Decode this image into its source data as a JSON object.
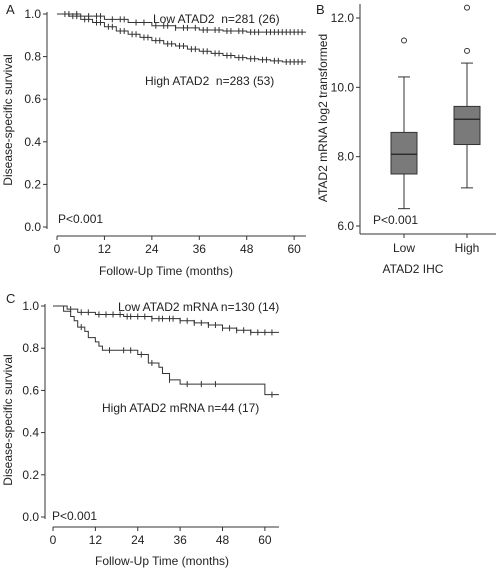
{
  "chart_data": [
    {
      "panel_label": "A",
      "type": "line",
      "chart_subtype": "kaplan-meier",
      "xlabel": "Follow-Up Time (months)",
      "ylabel": "Disease-specific survival",
      "xlim": [
        0,
        63
      ],
      "ylim": [
        0,
        1.0
      ],
      "x_ticks": [
        "0",
        "12",
        "24",
        "36",
        "48",
        "60"
      ],
      "y_ticks": [
        "0.0",
        "0.2",
        "0.4",
        "0.6",
        "0.8",
        "1.0"
      ],
      "annotation": "P<0.001",
      "series": [
        {
          "name": "Low ATAD2  n=281 (26)",
          "steps": [
            [
              0,
              1.0
            ],
            [
              6,
              0.99
            ],
            [
              12,
              0.975
            ],
            [
              18,
              0.96
            ],
            [
              24,
              0.945
            ],
            [
              30,
              0.935
            ],
            [
              36,
              0.925
            ],
            [
              42,
              0.92
            ],
            [
              48,
              0.915
            ],
            [
              54,
              0.915
            ],
            [
              63,
              0.915
            ]
          ],
          "censored_x": [
            3,
            5,
            8,
            10,
            11,
            14,
            16,
            17,
            20,
            22,
            25,
            27,
            28,
            30,
            32,
            33,
            35,
            37,
            38,
            40,
            41,
            43,
            44,
            46,
            47,
            49,
            50,
            51,
            53,
            54,
            55,
            56,
            57,
            58,
            59,
            60,
            61,
            62
          ]
        },
        {
          "name": "High ATAD2  n=283 (53)",
          "steps": [
            [
              0,
              1.0
            ],
            [
              3,
              0.99
            ],
            [
              6,
              0.975
            ],
            [
              9,
              0.96
            ],
            [
              12,
              0.94
            ],
            [
              15,
              0.92
            ],
            [
              18,
              0.905
            ],
            [
              21,
              0.89
            ],
            [
              24,
              0.875
            ],
            [
              27,
              0.86
            ],
            [
              30,
              0.85
            ],
            [
              33,
              0.835
            ],
            [
              36,
              0.825
            ],
            [
              39,
              0.815
            ],
            [
              42,
              0.805
            ],
            [
              45,
              0.795
            ],
            [
              48,
              0.79
            ],
            [
              51,
              0.785
            ],
            [
              54,
              0.78
            ],
            [
              57,
              0.775
            ],
            [
              63,
              0.775
            ]
          ],
          "censored_x": [
            2,
            4,
            5,
            7,
            8,
            10,
            11,
            13,
            14,
            16,
            17,
            19,
            20,
            22,
            23,
            25,
            26,
            28,
            29,
            31,
            32,
            34,
            35,
            37,
            38,
            40,
            41,
            43,
            44,
            46,
            47,
            49,
            50,
            52,
            53,
            55,
            56,
            58,
            59,
            60,
            61,
            62
          ]
        }
      ]
    },
    {
      "panel_label": "B",
      "type": "box",
      "xlabel": "ATAD2 IHC",
      "ylabel": "ATAD2 mRNA log2 transformed",
      "ylim": [
        6.0,
        12.5
      ],
      "y_ticks": [
        "6.0",
        "8.0",
        "10.0",
        "12.0"
      ],
      "categories": [
        "Low",
        "High"
      ],
      "annotation": "P<0.001",
      "boxes": [
        {
          "category": "Low",
          "whisker_low": 6.5,
          "q1": 7.5,
          "median": 8.07,
          "q3": 8.7,
          "whisker_high": 10.3,
          "outliers": [
            11.35
          ]
        },
        {
          "category": "High",
          "whisker_low": 7.1,
          "q1": 8.35,
          "median": 9.08,
          "q3": 9.45,
          "whisker_high": 10.7,
          "outliers": [
            11.05,
            12.3
          ]
        }
      ]
    },
    {
      "panel_label": "C",
      "type": "line",
      "chart_subtype": "kaplan-meier",
      "xlabel": "Follow-Up Time (months)",
      "ylabel": "Disease-specific survival",
      "xlim": [
        0,
        64
      ],
      "ylim": [
        0,
        1.0
      ],
      "x_ticks": [
        "0",
        "12",
        "24",
        "36",
        "48",
        "60"
      ],
      "y_ticks": [
        "0.0",
        "0.2",
        "0.4",
        "0.6",
        "0.8",
        "1.0"
      ],
      "annotation": "P<0.001",
      "series": [
        {
          "name": "Low ATAD2 mRNA n=130 (14)",
          "steps": [
            [
              0,
              1.0
            ],
            [
              4,
              0.985
            ],
            [
              7,
              0.97
            ],
            [
              12,
              0.96
            ],
            [
              20,
              0.95
            ],
            [
              28,
              0.94
            ],
            [
              36,
              0.93
            ],
            [
              40,
              0.92
            ],
            [
              44,
              0.91
            ],
            [
              48,
              0.895
            ],
            [
              52,
              0.885
            ],
            [
              56,
              0.875
            ],
            [
              64,
              0.875
            ]
          ],
          "censored_x": [
            5,
            8,
            10,
            13,
            15,
            17,
            19,
            21,
            22,
            24,
            26,
            28,
            30,
            31,
            33,
            34,
            36,
            38,
            40,
            42,
            44,
            46,
            48,
            50,
            52,
            54,
            56,
            58,
            60,
            62
          ]
        },
        {
          "name": "High ATAD2 mRNA n=44 (17)",
          "steps": [
            [
              0,
              1.0
            ],
            [
              3,
              0.975
            ],
            [
              5,
              0.95
            ],
            [
              6,
              0.93
            ],
            [
              7,
              0.9
            ],
            [
              9,
              0.88
            ],
            [
              10,
              0.85
            ],
            [
              12,
              0.83
            ],
            [
              13,
              0.81
            ],
            [
              14,
              0.79
            ],
            [
              24,
              0.77
            ],
            [
              27,
              0.73
            ],
            [
              30,
              0.71
            ],
            [
              31,
              0.68
            ],
            [
              33,
              0.65
            ],
            [
              36,
              0.63
            ],
            [
              60,
              0.58
            ],
            [
              64,
              0.58
            ]
          ],
          "censored_x": [
            8,
            16,
            20,
            22,
            25,
            28,
            33,
            38,
            42,
            46,
            62
          ]
        }
      ]
    }
  ]
}
